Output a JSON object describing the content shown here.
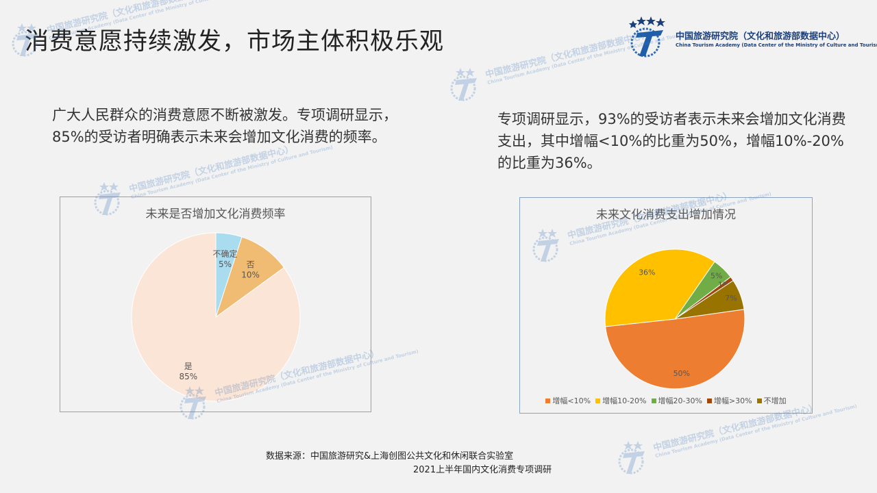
{
  "header": {
    "title": "消费意愿持续激发，市场主体积极乐观",
    "logo_cn": "中国旅游研究院（文化和旅游部数据中心）",
    "logo_en": "China Tourism Academy (Data Center of the Ministry of Culture and Tourism)"
  },
  "paragraphs": {
    "left": "广大人民群众的消费意愿不断被激发。专项调研显示，85%的受访者明确表示未来会增加文化消费的频率。",
    "right": "专项调研显示，93%的受访者表示未来会增加文化消费支出，其中增幅<10%的比重为50%，增幅10%-20%的比重为36%。"
  },
  "chart_data": [
    {
      "type": "pie",
      "title": "未来是否增加文化消费频率",
      "categories": [
        "是",
        "否",
        "不确定"
      ],
      "values": [
        85,
        10,
        5
      ],
      "value_labels": [
        "85%",
        "10%",
        "5%"
      ],
      "colors": [
        "#fbe5d6",
        "#f0bb72",
        "#a9dcef"
      ],
      "legend": "none"
    },
    {
      "type": "pie",
      "title": "未来文化消费支出增加情况",
      "categories": [
        "增幅<10%",
        "增幅10-20%",
        "增幅20-30%",
        "增幅>30%",
        "不增加"
      ],
      "values": [
        50,
        36,
        5,
        1,
        7
      ],
      "value_labels": [
        "50%",
        "36%",
        "5%",
        "1%",
        "7%"
      ],
      "colors": [
        "#ed7d31",
        "#ffc000",
        "#70ad47",
        "#9e480e",
        "#997300"
      ],
      "legend": "bottom"
    }
  ],
  "source": {
    "line1": "数据来源：中国旅游研究&上海创图公共文化和休闲联合实验室",
    "line2": "2021上半年国内文化消费专项调研"
  },
  "watermark": {
    "cn": "中国旅游研究院（文化和旅游部数据中心）",
    "en": "China Tourism Academy (Data Center of the Ministry of Culture and Tourism)"
  }
}
